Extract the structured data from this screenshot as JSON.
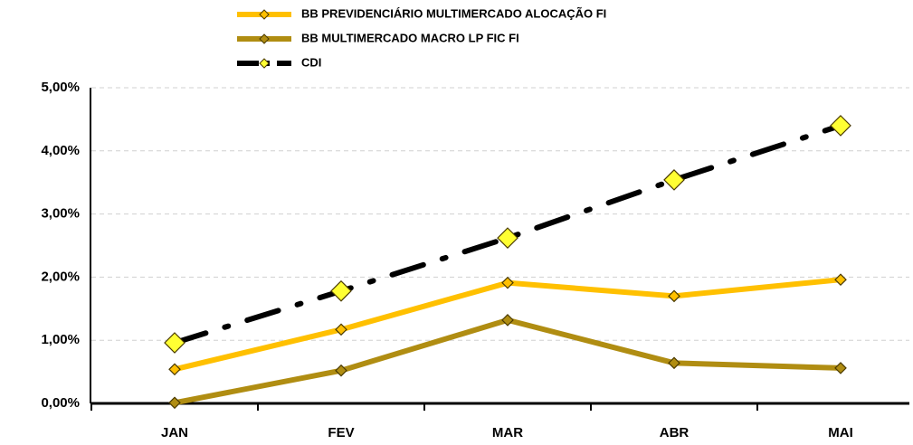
{
  "chart_data": {
    "type": "line",
    "categories": [
      "JAN",
      "FEV",
      "MAR",
      "ABR",
      "MAI"
    ],
    "series": [
      {
        "name": "BB PREVIDENCIÁRIO MULTIMERCADO ALOCAÇÃO FI",
        "color": "#FFC000",
        "marker_color": "#FFC000",
        "line_style": "solid",
        "values": [
          0.54,
          1.17,
          1.91,
          1.7,
          1.96
        ]
      },
      {
        "name": "BB MULTIMERCADO MACRO LP FIC FI",
        "color": "#B08D12",
        "marker_color": "#B08D12",
        "line_style": "solid",
        "values": [
          0.01,
          0.52,
          1.32,
          0.64,
          0.56
        ]
      },
      {
        "name": "CDI",
        "color": "#000000",
        "marker_color": "#FFFF33",
        "line_style": "dashdot",
        "values": [
          0.96,
          1.78,
          2.62,
          3.54,
          4.4
        ]
      }
    ],
    "ylim": [
      0,
      5
    ],
    "yticks": [
      {
        "value": 0,
        "label": "0,00%"
      },
      {
        "value": 1,
        "label": "1,00%"
      },
      {
        "value": 2,
        "label": "2,00%"
      },
      {
        "value": 3,
        "label": "3,00%"
      },
      {
        "value": 4,
        "label": "4,00%"
      },
      {
        "value": 5,
        "label": "5,00%"
      }
    ],
    "grid": true
  }
}
